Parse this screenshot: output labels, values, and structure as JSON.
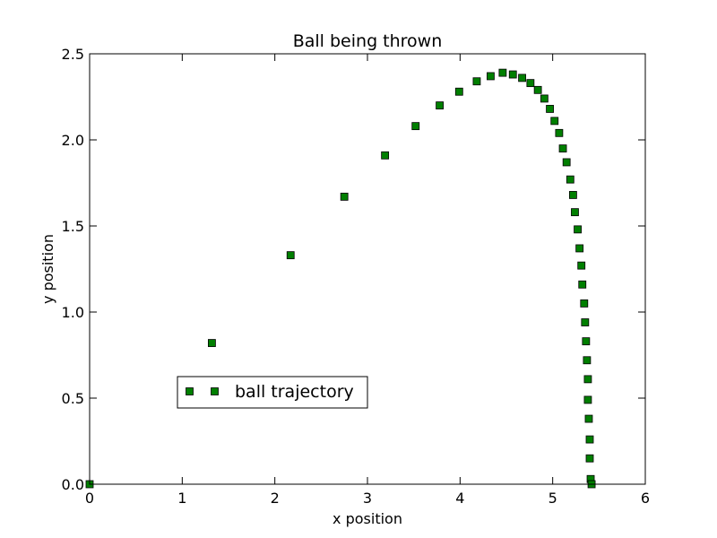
{
  "chart_data": {
    "type": "scatter",
    "title": "Ball being thrown",
    "xlabel": "x position",
    "ylabel": "y position",
    "xlim": [
      0,
      6
    ],
    "ylim": [
      0,
      2.5
    ],
    "xticks": [
      "0",
      "1",
      "2",
      "3",
      "4",
      "5",
      "6"
    ],
    "yticks": [
      "0.0",
      "0.5",
      "1.0",
      "1.5",
      "2.0",
      "2.5"
    ],
    "grid": false,
    "legend_position": "lower-left",
    "marker": "square",
    "color": "#007f00",
    "series": [
      {
        "name": "ball trajectory",
        "points": [
          [
            0.0,
            0.0
          ],
          [
            1.32,
            0.82
          ],
          [
            2.17,
            1.33
          ],
          [
            2.75,
            1.67
          ],
          [
            3.19,
            1.91
          ],
          [
            3.52,
            2.08
          ],
          [
            3.78,
            2.2
          ],
          [
            3.99,
            2.28
          ],
          [
            4.18,
            2.34
          ],
          [
            4.33,
            2.37
          ],
          [
            4.46,
            2.39
          ],
          [
            4.57,
            2.38
          ],
          [
            4.67,
            2.36
          ],
          [
            4.76,
            2.33
          ],
          [
            4.84,
            2.29
          ],
          [
            4.91,
            2.24
          ],
          [
            4.97,
            2.18
          ],
          [
            5.02,
            2.11
          ],
          [
            5.07,
            2.04
          ],
          [
            5.11,
            1.95
          ],
          [
            5.15,
            1.87
          ],
          [
            5.19,
            1.77
          ],
          [
            5.22,
            1.68
          ],
          [
            5.24,
            1.58
          ],
          [
            5.27,
            1.48
          ],
          [
            5.29,
            1.37
          ],
          [
            5.31,
            1.27
          ],
          [
            5.32,
            1.16
          ],
          [
            5.34,
            1.05
          ],
          [
            5.35,
            0.94
          ],
          [
            5.36,
            0.83
          ],
          [
            5.37,
            0.72
          ],
          [
            5.38,
            0.61
          ],
          [
            5.38,
            0.49
          ],
          [
            5.39,
            0.38
          ],
          [
            5.4,
            0.26
          ],
          [
            5.4,
            0.15
          ],
          [
            5.41,
            0.03
          ],
          [
            5.42,
            0.0
          ]
        ]
      }
    ]
  }
}
